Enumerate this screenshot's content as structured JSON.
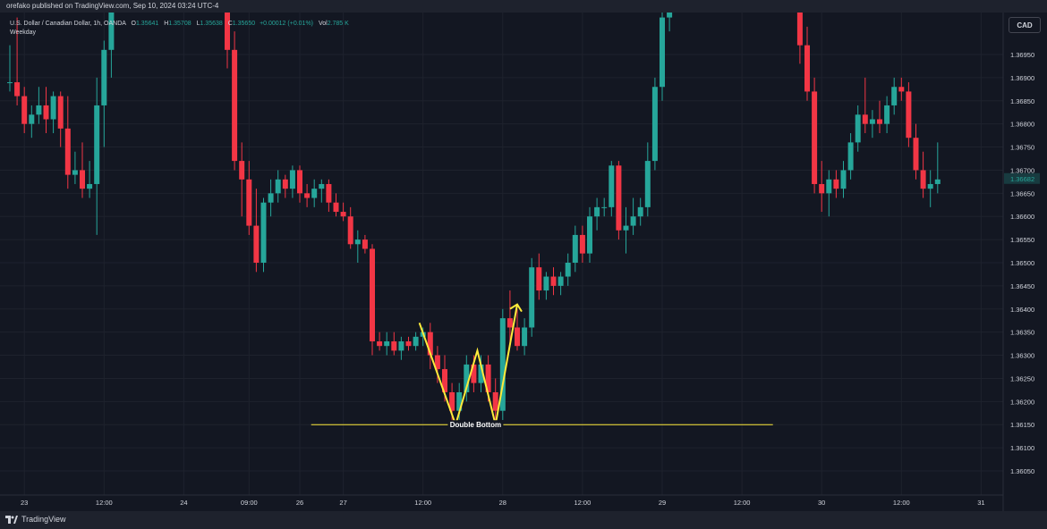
{
  "publisher_line": "orefako published on TradingView.com, Sep 10, 2024 03:24 UTC-4",
  "symbol": {
    "title": "U.S. Dollar / Canadian Dollar, 1h, OANDA",
    "o_label": "O",
    "o_value": "1.35641",
    "h_label": "H",
    "h_value": "1.35708",
    "l_label": "L",
    "l_value": "1.35638",
    "c_label": "C",
    "c_value": "1.35650",
    "change": "+0.00012 (+0.01%)",
    "vol_label": "Vol",
    "vol_value": "2.785 K",
    "session": "Weekday"
  },
  "currency_button": "CAD",
  "brand": {
    "name": "TradingView",
    "icon": "tradingview-logo-icon"
  },
  "colors": {
    "background": "#131722",
    "up": "#26a69a",
    "down": "#f23645",
    "pattern": "#ffeb3b",
    "grid": "#1e222d",
    "text": "#d1d4dc"
  },
  "chart_data": {
    "type": "candlestick",
    "symbol": "USD/CAD",
    "interval": "1h",
    "y_axis_ticks": [
      "1.36950",
      "1.36900",
      "1.36850",
      "1.36800",
      "1.36750",
      "1.36700",
      "1.36650",
      "1.36600",
      "1.36550",
      "1.36500",
      "1.36450",
      "1.36400",
      "1.36350",
      "1.36300",
      "1.36250",
      "1.36200",
      "1.36150",
      "1.36100",
      "1.36050"
    ],
    "x_axis_ticks": [
      {
        "label": "23",
        "bar": 2
      },
      {
        "label": "12:00",
        "bar": 13
      },
      {
        "label": "24",
        "bar": 24
      },
      {
        "label": "09:00",
        "bar": 33
      },
      {
        "label": "26",
        "bar": 40
      },
      {
        "label": "27",
        "bar": 46
      },
      {
        "label": "12:00",
        "bar": 57
      },
      {
        "label": "28",
        "bar": 68
      },
      {
        "label": "12:00",
        "bar": 79
      },
      {
        "label": "29",
        "bar": 90
      },
      {
        "label": "12:00",
        "bar": 101
      },
      {
        "label": "30",
        "bar": 112
      },
      {
        "label": "12:00",
        "bar": 123
      },
      {
        "label": "31",
        "bar": 134
      }
    ],
    "ylim": [
      1.3601,
      1.3712
    ],
    "last_price": "1.36682",
    "candles": [
      {
        "i": 0,
        "o": 1.3689,
        "h": 1.3697,
        "l": 1.3687,
        "c": 1.3689
      },
      {
        "i": 1,
        "o": 1.3689,
        "h": 1.3703,
        "l": 1.3684,
        "c": 1.3686
      },
      {
        "i": 2,
        "o": 1.3686,
        "h": 1.3688,
        "l": 1.3678,
        "c": 1.368
      },
      {
        "i": 3,
        "o": 1.368,
        "h": 1.3684,
        "l": 1.3677,
        "c": 1.3682
      },
      {
        "i": 4,
        "o": 1.3682,
        "h": 1.3688,
        "l": 1.368,
        "c": 1.3684
      },
      {
        "i": 5,
        "o": 1.3684,
        "h": 1.3688,
        "l": 1.3678,
        "c": 1.3681
      },
      {
        "i": 6,
        "o": 1.3681,
        "h": 1.3687,
        "l": 1.3678,
        "c": 1.3686
      },
      {
        "i": 7,
        "o": 1.3686,
        "h": 1.3687,
        "l": 1.3675,
        "c": 1.3679
      },
      {
        "i": 8,
        "o": 1.3679,
        "h": 1.3686,
        "l": 1.3666,
        "c": 1.3669
      },
      {
        "i": 9,
        "o": 1.3669,
        "h": 1.3674,
        "l": 1.3667,
        "c": 1.367
      },
      {
        "i": 10,
        "o": 1.367,
        "h": 1.3676,
        "l": 1.3664,
        "c": 1.3666
      },
      {
        "i": 11,
        "o": 1.3666,
        "h": 1.3672,
        "l": 1.3664,
        "c": 1.3667
      },
      {
        "i": 12,
        "o": 1.3667,
        "h": 1.369,
        "l": 1.3656,
        "c": 1.3684
      },
      {
        "i": 13,
        "o": 1.3684,
        "h": 1.3698,
        "l": 1.3675,
        "c": 1.3696
      },
      {
        "i": 14,
        "o": 1.3696,
        "h": 1.3712,
        "l": 1.369,
        "c": 1.371
      },
      {
        "i": 30,
        "o": 1.3712,
        "h": 1.3712,
        "l": 1.3692,
        "c": 1.3696
      },
      {
        "i": 31,
        "o": 1.3696,
        "h": 1.37,
        "l": 1.367,
        "c": 1.3672
      },
      {
        "i": 32,
        "o": 1.3672,
        "h": 1.3676,
        "l": 1.366,
        "c": 1.3668
      },
      {
        "i": 33,
        "o": 1.3668,
        "h": 1.3672,
        "l": 1.3656,
        "c": 1.3658
      },
      {
        "i": 34,
        "o": 1.3658,
        "h": 1.3666,
        "l": 1.3648,
        "c": 1.365
      },
      {
        "i": 35,
        "o": 1.365,
        "h": 1.3664,
        "l": 1.3648,
        "c": 1.3663
      },
      {
        "i": 36,
        "o": 1.3663,
        "h": 1.3668,
        "l": 1.366,
        "c": 1.3665
      },
      {
        "i": 37,
        "o": 1.3665,
        "h": 1.367,
        "l": 1.3663,
        "c": 1.3668
      },
      {
        "i": 38,
        "o": 1.3668,
        "h": 1.3669,
        "l": 1.3664,
        "c": 1.3666
      },
      {
        "i": 39,
        "o": 1.3666,
        "h": 1.3671,
        "l": 1.3664,
        "c": 1.367
      },
      {
        "i": 40,
        "o": 1.367,
        "h": 1.3671,
        "l": 1.3663,
        "c": 1.3665
      },
      {
        "i": 41,
        "o": 1.3665,
        "h": 1.3667,
        "l": 1.3662,
        "c": 1.3664
      },
      {
        "i": 42,
        "o": 1.3664,
        "h": 1.3668,
        "l": 1.3662,
        "c": 1.3666
      },
      {
        "i": 43,
        "o": 1.3666,
        "h": 1.3668,
        "l": 1.3663,
        "c": 1.3667
      },
      {
        "i": 44,
        "o": 1.3667,
        "h": 1.3668,
        "l": 1.3661,
        "c": 1.3663
      },
      {
        "i": 45,
        "o": 1.3663,
        "h": 1.3665,
        "l": 1.366,
        "c": 1.3661
      },
      {
        "i": 46,
        "o": 1.3661,
        "h": 1.3663,
        "l": 1.3659,
        "c": 1.366
      },
      {
        "i": 47,
        "o": 1.366,
        "h": 1.3662,
        "l": 1.3653,
        "c": 1.3654
      },
      {
        "i": 48,
        "o": 1.3654,
        "h": 1.3657,
        "l": 1.365,
        "c": 1.3655
      },
      {
        "i": 49,
        "o": 1.3655,
        "h": 1.3656,
        "l": 1.3652,
        "c": 1.3653
      },
      {
        "i": 50,
        "o": 1.3653,
        "h": 1.3654,
        "l": 1.363,
        "c": 1.3633
      },
      {
        "i": 51,
        "o": 1.3633,
        "h": 1.3635,
        "l": 1.3631,
        "c": 1.3632
      },
      {
        "i": 52,
        "o": 1.3632,
        "h": 1.3635,
        "l": 1.363,
        "c": 1.3633
      },
      {
        "i": 53,
        "o": 1.3633,
        "h": 1.3635,
        "l": 1.363,
        "c": 1.3631
      },
      {
        "i": 54,
        "o": 1.3631,
        "h": 1.3634,
        "l": 1.3629,
        "c": 1.3633
      },
      {
        "i": 55,
        "o": 1.3633,
        "h": 1.3634,
        "l": 1.3631,
        "c": 1.3632
      },
      {
        "i": 56,
        "o": 1.3632,
        "h": 1.3635,
        "l": 1.3631,
        "c": 1.3634
      },
      {
        "i": 57,
        "o": 1.3634,
        "h": 1.3636,
        "l": 1.3632,
        "c": 1.3635
      },
      {
        "i": 58,
        "o": 1.3635,
        "h": 1.3637,
        "l": 1.3627,
        "c": 1.363
      },
      {
        "i": 59,
        "o": 1.363,
        "h": 1.3632,
        "l": 1.3624,
        "c": 1.3627
      },
      {
        "i": 60,
        "o": 1.3627,
        "h": 1.363,
        "l": 1.362,
        "c": 1.3622
      },
      {
        "i": 61,
        "o": 1.3622,
        "h": 1.3624,
        "l": 1.3615,
        "c": 1.3618
      },
      {
        "i": 62,
        "o": 1.3618,
        "h": 1.3624,
        "l": 1.3616,
        "c": 1.3622
      },
      {
        "i": 63,
        "o": 1.3622,
        "h": 1.363,
        "l": 1.362,
        "c": 1.3628
      },
      {
        "i": 64,
        "o": 1.3628,
        "h": 1.363,
        "l": 1.3622,
        "c": 1.3624
      },
      {
        "i": 65,
        "o": 1.3624,
        "h": 1.363,
        "l": 1.3622,
        "c": 1.3628
      },
      {
        "i": 66,
        "o": 1.3628,
        "h": 1.363,
        "l": 1.362,
        "c": 1.3622
      },
      {
        "i": 67,
        "o": 1.3622,
        "h": 1.3625,
        "l": 1.3615,
        "c": 1.3618
      },
      {
        "i": 68,
        "o": 1.3618,
        "h": 1.364,
        "l": 1.3616,
        "c": 1.3638
      },
      {
        "i": 69,
        "o": 1.3638,
        "h": 1.3644,
        "l": 1.3632,
        "c": 1.3636
      },
      {
        "i": 70,
        "o": 1.3636,
        "h": 1.364,
        "l": 1.3631,
        "c": 1.3632
      },
      {
        "i": 71,
        "o": 1.3632,
        "h": 1.3638,
        "l": 1.363,
        "c": 1.3636
      },
      {
        "i": 72,
        "o": 1.3636,
        "h": 1.3651,
        "l": 1.3634,
        "c": 1.3649
      },
      {
        "i": 73,
        "o": 1.3649,
        "h": 1.3652,
        "l": 1.3642,
        "c": 1.3644
      },
      {
        "i": 74,
        "o": 1.3644,
        "h": 1.3648,
        "l": 1.3642,
        "c": 1.3647
      },
      {
        "i": 75,
        "o": 1.3647,
        "h": 1.3649,
        "l": 1.3643,
        "c": 1.3645
      },
      {
        "i": 76,
        "o": 1.3645,
        "h": 1.3648,
        "l": 1.3643,
        "c": 1.3647
      },
      {
        "i": 77,
        "o": 1.3647,
        "h": 1.3652,
        "l": 1.3645,
        "c": 1.365
      },
      {
        "i": 78,
        "o": 1.365,
        "h": 1.3658,
        "l": 1.3648,
        "c": 1.3656
      },
      {
        "i": 79,
        "o": 1.3656,
        "h": 1.3658,
        "l": 1.365,
        "c": 1.3652
      },
      {
        "i": 80,
        "o": 1.3652,
        "h": 1.3662,
        "l": 1.365,
        "c": 1.366
      },
      {
        "i": 81,
        "o": 1.366,
        "h": 1.3664,
        "l": 1.3657,
        "c": 1.3662
      },
      {
        "i": 82,
        "o": 1.3662,
        "h": 1.3664,
        "l": 1.366,
        "c": 1.3662
      },
      {
        "i": 83,
        "o": 1.3662,
        "h": 1.3672,
        "l": 1.366,
        "c": 1.3671
      },
      {
        "i": 84,
        "o": 1.3671,
        "h": 1.3672,
        "l": 1.3655,
        "c": 1.3657
      },
      {
        "i": 85,
        "o": 1.3657,
        "h": 1.3662,
        "l": 1.3652,
        "c": 1.3658
      },
      {
        "i": 86,
        "o": 1.3658,
        "h": 1.3664,
        "l": 1.3656,
        "c": 1.366
      },
      {
        "i": 87,
        "o": 1.366,
        "h": 1.3664,
        "l": 1.3658,
        "c": 1.3662
      },
      {
        "i": 88,
        "o": 1.3662,
        "h": 1.3676,
        "l": 1.366,
        "c": 1.3672
      },
      {
        "i": 89,
        "o": 1.3672,
        "h": 1.369,
        "l": 1.367,
        "c": 1.3688
      },
      {
        "i": 90,
        "o": 1.3688,
        "h": 1.3705,
        "l": 1.3685,
        "c": 1.3703
      },
      {
        "i": 91,
        "o": 1.3703,
        "h": 1.3712,
        "l": 1.37,
        "c": 1.3712
      },
      {
        "i": 109,
        "o": 1.3712,
        "h": 1.3712,
        "l": 1.3693,
        "c": 1.3697
      },
      {
        "i": 110,
        "o": 1.3697,
        "h": 1.3701,
        "l": 1.3685,
        "c": 1.3687
      },
      {
        "i": 111,
        "o": 1.3687,
        "h": 1.369,
        "l": 1.3665,
        "c": 1.3667
      },
      {
        "i": 112,
        "o": 1.3667,
        "h": 1.3672,
        "l": 1.3661,
        "c": 1.3665
      },
      {
        "i": 113,
        "o": 1.3665,
        "h": 1.367,
        "l": 1.366,
        "c": 1.3668
      },
      {
        "i": 114,
        "o": 1.3668,
        "h": 1.367,
        "l": 1.3664,
        "c": 1.3666
      },
      {
        "i": 115,
        "o": 1.3666,
        "h": 1.3672,
        "l": 1.3664,
        "c": 1.367
      },
      {
        "i": 116,
        "o": 1.367,
        "h": 1.3678,
        "l": 1.3668,
        "c": 1.3676
      },
      {
        "i": 117,
        "o": 1.3676,
        "h": 1.3684,
        "l": 1.3674,
        "c": 1.3682
      },
      {
        "i": 118,
        "o": 1.3682,
        "h": 1.369,
        "l": 1.3678,
        "c": 1.368
      },
      {
        "i": 119,
        "o": 1.368,
        "h": 1.3683,
        "l": 1.3677,
        "c": 1.3681
      },
      {
        "i": 120,
        "o": 1.3681,
        "h": 1.3685,
        "l": 1.3678,
        "c": 1.368
      },
      {
        "i": 121,
        "o": 1.368,
        "h": 1.3686,
        "l": 1.3678,
        "c": 1.3684
      },
      {
        "i": 122,
        "o": 1.3684,
        "h": 1.369,
        "l": 1.3682,
        "c": 1.3688
      },
      {
        "i": 123,
        "o": 1.3688,
        "h": 1.369,
        "l": 1.3685,
        "c": 1.3687
      },
      {
        "i": 124,
        "o": 1.3687,
        "h": 1.3689,
        "l": 1.3675,
        "c": 1.3677
      },
      {
        "i": 125,
        "o": 1.3677,
        "h": 1.368,
        "l": 1.3668,
        "c": 1.367
      },
      {
        "i": 126,
        "o": 1.367,
        "h": 1.3674,
        "l": 1.3664,
        "c": 1.3666
      },
      {
        "i": 127,
        "o": 1.3666,
        "h": 1.367,
        "l": 1.3662,
        "c": 1.3667
      },
      {
        "i": 128,
        "o": 1.3667,
        "h": 1.3676,
        "l": 1.3665,
        "c": 1.3668
      }
    ],
    "annotations": {
      "pattern_label": "Double Bottom",
      "support_level": 1.3615,
      "support_from_bar": 37,
      "support_to_bar": 97,
      "pattern_path": [
        {
          "bar": 56.5,
          "price": 1.3637
        },
        {
          "bar": 61.5,
          "price": 1.3615
        },
        {
          "bar": 64.5,
          "price": 1.3631
        },
        {
          "bar": 67,
          "price": 1.3615
        },
        {
          "bar": 70,
          "price": 1.3641
        }
      ],
      "arrow_at": {
        "bar": 70,
        "price": 1.3641
      }
    }
  }
}
